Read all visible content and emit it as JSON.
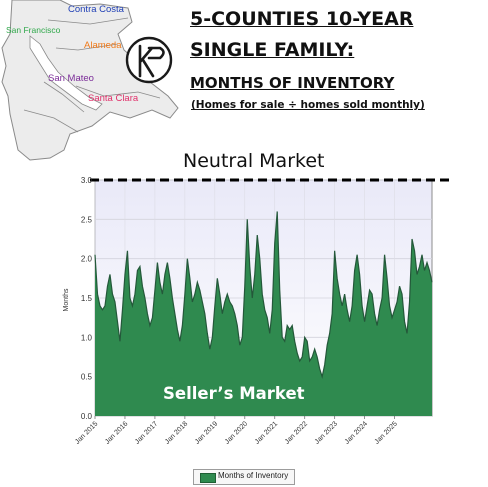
{
  "header": {
    "title_line1": "5-COUNTIES 10-YEAR",
    "title_line2": "SINGLE FAMILY:",
    "title_line3": "MONTHS OF INVENTORY",
    "subtitle": "(Homes for sale ÷ homes sold monthly)"
  },
  "map": {
    "counties": [
      {
        "name": "Contra Costa",
        "color": "#1f3fb5"
      },
      {
        "name": "San Francisco",
        "color": "#2fa84a"
      },
      {
        "name": "Alameda",
        "color": "#f07a1a"
      },
      {
        "name": "San Mateo",
        "color": "#7b2c98"
      },
      {
        "name": "Santa Clara",
        "color": "#e0306a"
      }
    ],
    "logo_text": "KP"
  },
  "annotations": {
    "neutral_market": "Neutral Market",
    "sellers_market": "Seller’s Market"
  },
  "colors": {
    "area_fill": "#2f8a4f",
    "area_line": "#24583a",
    "plot_bg_top": "#e9e9f8",
    "plot_bg_bottom": "#ffffff",
    "neutral_line": "#000000"
  },
  "chart_data": {
    "type": "area",
    "ylabel": "Months",
    "ylim": [
      0.0,
      3.0
    ],
    "yticks": [
      "0.0",
      "0.5",
      "1.0",
      "1.5",
      "2.0",
      "2.5",
      "3.0"
    ],
    "xtick_labels": [
      "Jan 2015",
      "Jan 2016",
      "Jan 2017",
      "Jan 2018",
      "Jan 2019",
      "Jan 2020",
      "Jan 2021",
      "Jan 2022",
      "Jan 2023",
      "Jan 2024",
      "Jan 2025"
    ],
    "grid": true,
    "legend_position": "bottom",
    "reference_line": 3.0,
    "series": [
      {
        "name": "Months of Inventory",
        "x_start": "Jan 2015",
        "x_step": "month",
        "values": [
          2.05,
          1.55,
          1.4,
          1.35,
          1.4,
          1.65,
          1.8,
          1.55,
          1.45,
          1.2,
          0.95,
          1.35,
          1.8,
          2.1,
          1.5,
          1.4,
          1.55,
          1.85,
          1.9,
          1.65,
          1.5,
          1.3,
          1.15,
          1.25,
          1.6,
          1.95,
          1.7,
          1.55,
          1.8,
          1.95,
          1.75,
          1.5,
          1.3,
          1.1,
          0.95,
          1.15,
          1.55,
          2.0,
          1.75,
          1.45,
          1.55,
          1.7,
          1.6,
          1.45,
          1.3,
          1.05,
          0.85,
          1.0,
          1.4,
          1.75,
          1.55,
          1.3,
          1.45,
          1.55,
          1.45,
          1.4,
          1.3,
          1.15,
          0.9,
          1.0,
          1.65,
          2.5,
          1.9,
          1.5,
          1.8,
          2.3,
          2.0,
          1.55,
          1.35,
          1.25,
          1.05,
          1.35,
          2.2,
          2.6,
          1.6,
          1.0,
          0.95,
          1.15,
          1.1,
          1.15,
          0.95,
          0.8,
          0.7,
          0.75,
          1.0,
          0.95,
          0.7,
          0.75,
          0.85,
          0.75,
          0.6,
          0.5,
          0.65,
          0.9,
          1.05,
          1.3,
          2.1,
          1.75,
          1.55,
          1.4,
          1.55,
          1.35,
          1.2,
          1.4,
          1.85,
          2.05,
          1.8,
          1.4,
          1.2,
          1.4,
          1.6,
          1.55,
          1.3,
          1.15,
          1.35,
          1.5,
          2.05,
          1.75,
          1.4,
          1.25,
          1.35,
          1.45,
          1.65,
          1.55,
          1.2,
          1.05,
          1.45,
          2.25,
          2.1,
          1.8,
          1.9,
          2.05,
          1.85,
          1.95,
          1.85,
          1.7
        ]
      }
    ]
  }
}
